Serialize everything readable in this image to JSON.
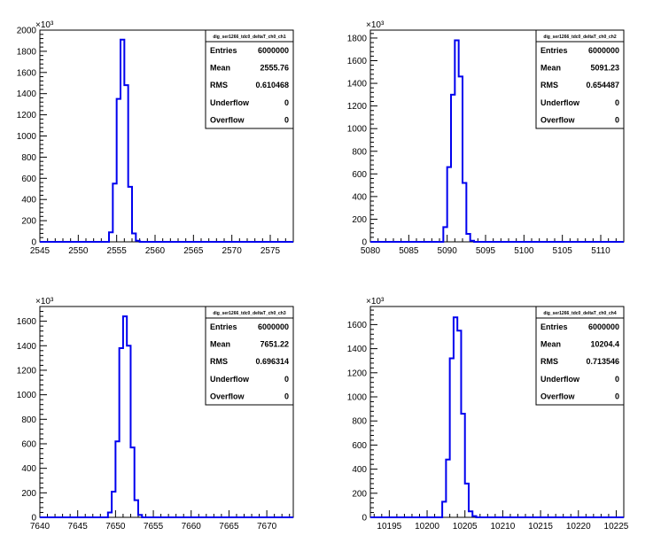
{
  "chart_data": [
    {
      "type": "histogram",
      "title": "dig_ser1266_tdc0_deltaT_ch0_ch1",
      "xlim": [
        2545,
        2578
      ],
      "ylim": [
        0,
        2000
      ],
      "y_multiplier": "×10³",
      "xticks": [
        2545,
        2550,
        2555,
        2560,
        2565,
        2570,
        2575
      ],
      "yticks": [
        0,
        200,
        400,
        600,
        800,
        1000,
        1200,
        1400,
        1600,
        1800,
        2000
      ],
      "bins": [
        {
          "x0": 2554,
          "x1": 2554.5,
          "y": 90
        },
        {
          "x0": 2554.5,
          "x1": 2555,
          "y": 550
        },
        {
          "x0": 2555,
          "x1": 2555.5,
          "y": 1350
        },
        {
          "x0": 2555.5,
          "x1": 2556,
          "y": 1910
        },
        {
          "x0": 2556,
          "x1": 2556.5,
          "y": 1480
        },
        {
          "x0": 2556.5,
          "x1": 2557,
          "y": 520
        },
        {
          "x0": 2557,
          "x1": 2557.5,
          "y": 80
        },
        {
          "x0": 2557.5,
          "x1": 2558,
          "y": 10
        }
      ],
      "stats": [
        {
          "label": "Entries",
          "value": "6000000"
        },
        {
          "label": "Mean",
          "value": "2555.76"
        },
        {
          "label": "RMS",
          "value": "0.610468"
        },
        {
          "label": "Underflow",
          "value": "0"
        },
        {
          "label": "Overflow",
          "value": "0"
        }
      ]
    },
    {
      "type": "histogram",
      "title": "dig_ser1266_tdc0_deltaT_ch0_ch2",
      "xlim": [
        5080,
        5113
      ],
      "ylim": [
        0,
        1870
      ],
      "y_multiplier": "×10³",
      "xticks": [
        5080,
        5085,
        5090,
        5095,
        5100,
        5105,
        5110
      ],
      "yticks": [
        0,
        200,
        400,
        600,
        800,
        1000,
        1200,
        1400,
        1600,
        1800
      ],
      "bins": [
        {
          "x0": 5089.5,
          "x1": 5090,
          "y": 130
        },
        {
          "x0": 5090,
          "x1": 5090.5,
          "y": 660
        },
        {
          "x0": 5090.5,
          "x1": 5091,
          "y": 1300
        },
        {
          "x0": 5091,
          "x1": 5091.5,
          "y": 1780
        },
        {
          "x0": 5091.5,
          "x1": 5092,
          "y": 1460
        },
        {
          "x0": 5092,
          "x1": 5092.5,
          "y": 520
        },
        {
          "x0": 5092.5,
          "x1": 5093,
          "y": 70
        },
        {
          "x0": 5093,
          "x1": 5093.5,
          "y": 10
        }
      ],
      "stats": [
        {
          "label": "Entries",
          "value": "6000000"
        },
        {
          "label": "Mean",
          "value": "5091.23"
        },
        {
          "label": "RMS",
          "value": "0.654487"
        },
        {
          "label": "Underflow",
          "value": "0"
        },
        {
          "label": "Overflow",
          "value": "0"
        }
      ]
    },
    {
      "type": "histogram",
      "title": "dig_ser1266_tdc0_deltaT_ch0_ch3",
      "xlim": [
        7640,
        7673.5
      ],
      "ylim": [
        0,
        1720
      ],
      "y_multiplier": "×10³",
      "xticks": [
        7640,
        7645,
        7650,
        7655,
        7660,
        7665,
        7670
      ],
      "yticks": [
        0,
        200,
        400,
        600,
        800,
        1000,
        1200,
        1400,
        1600
      ],
      "bins": [
        {
          "x0": 7649,
          "x1": 7649.5,
          "y": 40
        },
        {
          "x0": 7649.5,
          "x1": 7650,
          "y": 210
        },
        {
          "x0": 7650,
          "x1": 7650.5,
          "y": 620
        },
        {
          "x0": 7650.5,
          "x1": 7651,
          "y": 1380
        },
        {
          "x0": 7651,
          "x1": 7651.5,
          "y": 1640
        },
        {
          "x0": 7651.5,
          "x1": 7652,
          "y": 1400
        },
        {
          "x0": 7652,
          "x1": 7652.5,
          "y": 570
        },
        {
          "x0": 7652.5,
          "x1": 7653,
          "y": 140
        },
        {
          "x0": 7653,
          "x1": 7653.5,
          "y": 20
        }
      ],
      "stats": [
        {
          "label": "Entries",
          "value": "6000000"
        },
        {
          "label": "Mean",
          "value": "7651.22"
        },
        {
          "label": "RMS",
          "value": "0.696314"
        },
        {
          "label": "Underflow",
          "value": "0"
        },
        {
          "label": "Overflow",
          "value": "0"
        }
      ]
    },
    {
      "type": "histogram",
      "title": "dig_ser1266_tdc0_deltaT_ch0_ch4",
      "xlim": [
        10192.5,
        10226
      ],
      "ylim": [
        0,
        1750
      ],
      "y_multiplier": "×10³",
      "xticks": [
        10195,
        10200,
        10205,
        10210,
        10215,
        10220,
        10225
      ],
      "yticks": [
        0,
        200,
        400,
        600,
        800,
        1000,
        1200,
        1400,
        1600
      ],
      "bins": [
        {
          "x0": 10202,
          "x1": 10202.5,
          "y": 130
        },
        {
          "x0": 10202.5,
          "x1": 10203,
          "y": 480
        },
        {
          "x0": 10203,
          "x1": 10203.5,
          "y": 1320
        },
        {
          "x0": 10203.5,
          "x1": 10204,
          "y": 1660
        },
        {
          "x0": 10204,
          "x1": 10204.5,
          "y": 1550
        },
        {
          "x0": 10204.5,
          "x1": 10205,
          "y": 860
        },
        {
          "x0": 10205,
          "x1": 10205.5,
          "y": 280
        },
        {
          "x0": 10205.5,
          "x1": 10206,
          "y": 50
        },
        {
          "x0": 10206,
          "x1": 10206.5,
          "y": 10
        }
      ],
      "stats": [
        {
          "label": "Entries",
          "value": "6000000"
        },
        {
          "label": "Mean",
          "value": "10204.4"
        },
        {
          "label": "RMS",
          "value": "0.713546"
        },
        {
          "label": "Underflow",
          "value": "0"
        },
        {
          "label": "Overflow",
          "value": "0"
        }
      ]
    }
  ],
  "colors": {
    "histogram_line": "#0000ee",
    "axis": "#000000",
    "background": "#ffffff"
  }
}
